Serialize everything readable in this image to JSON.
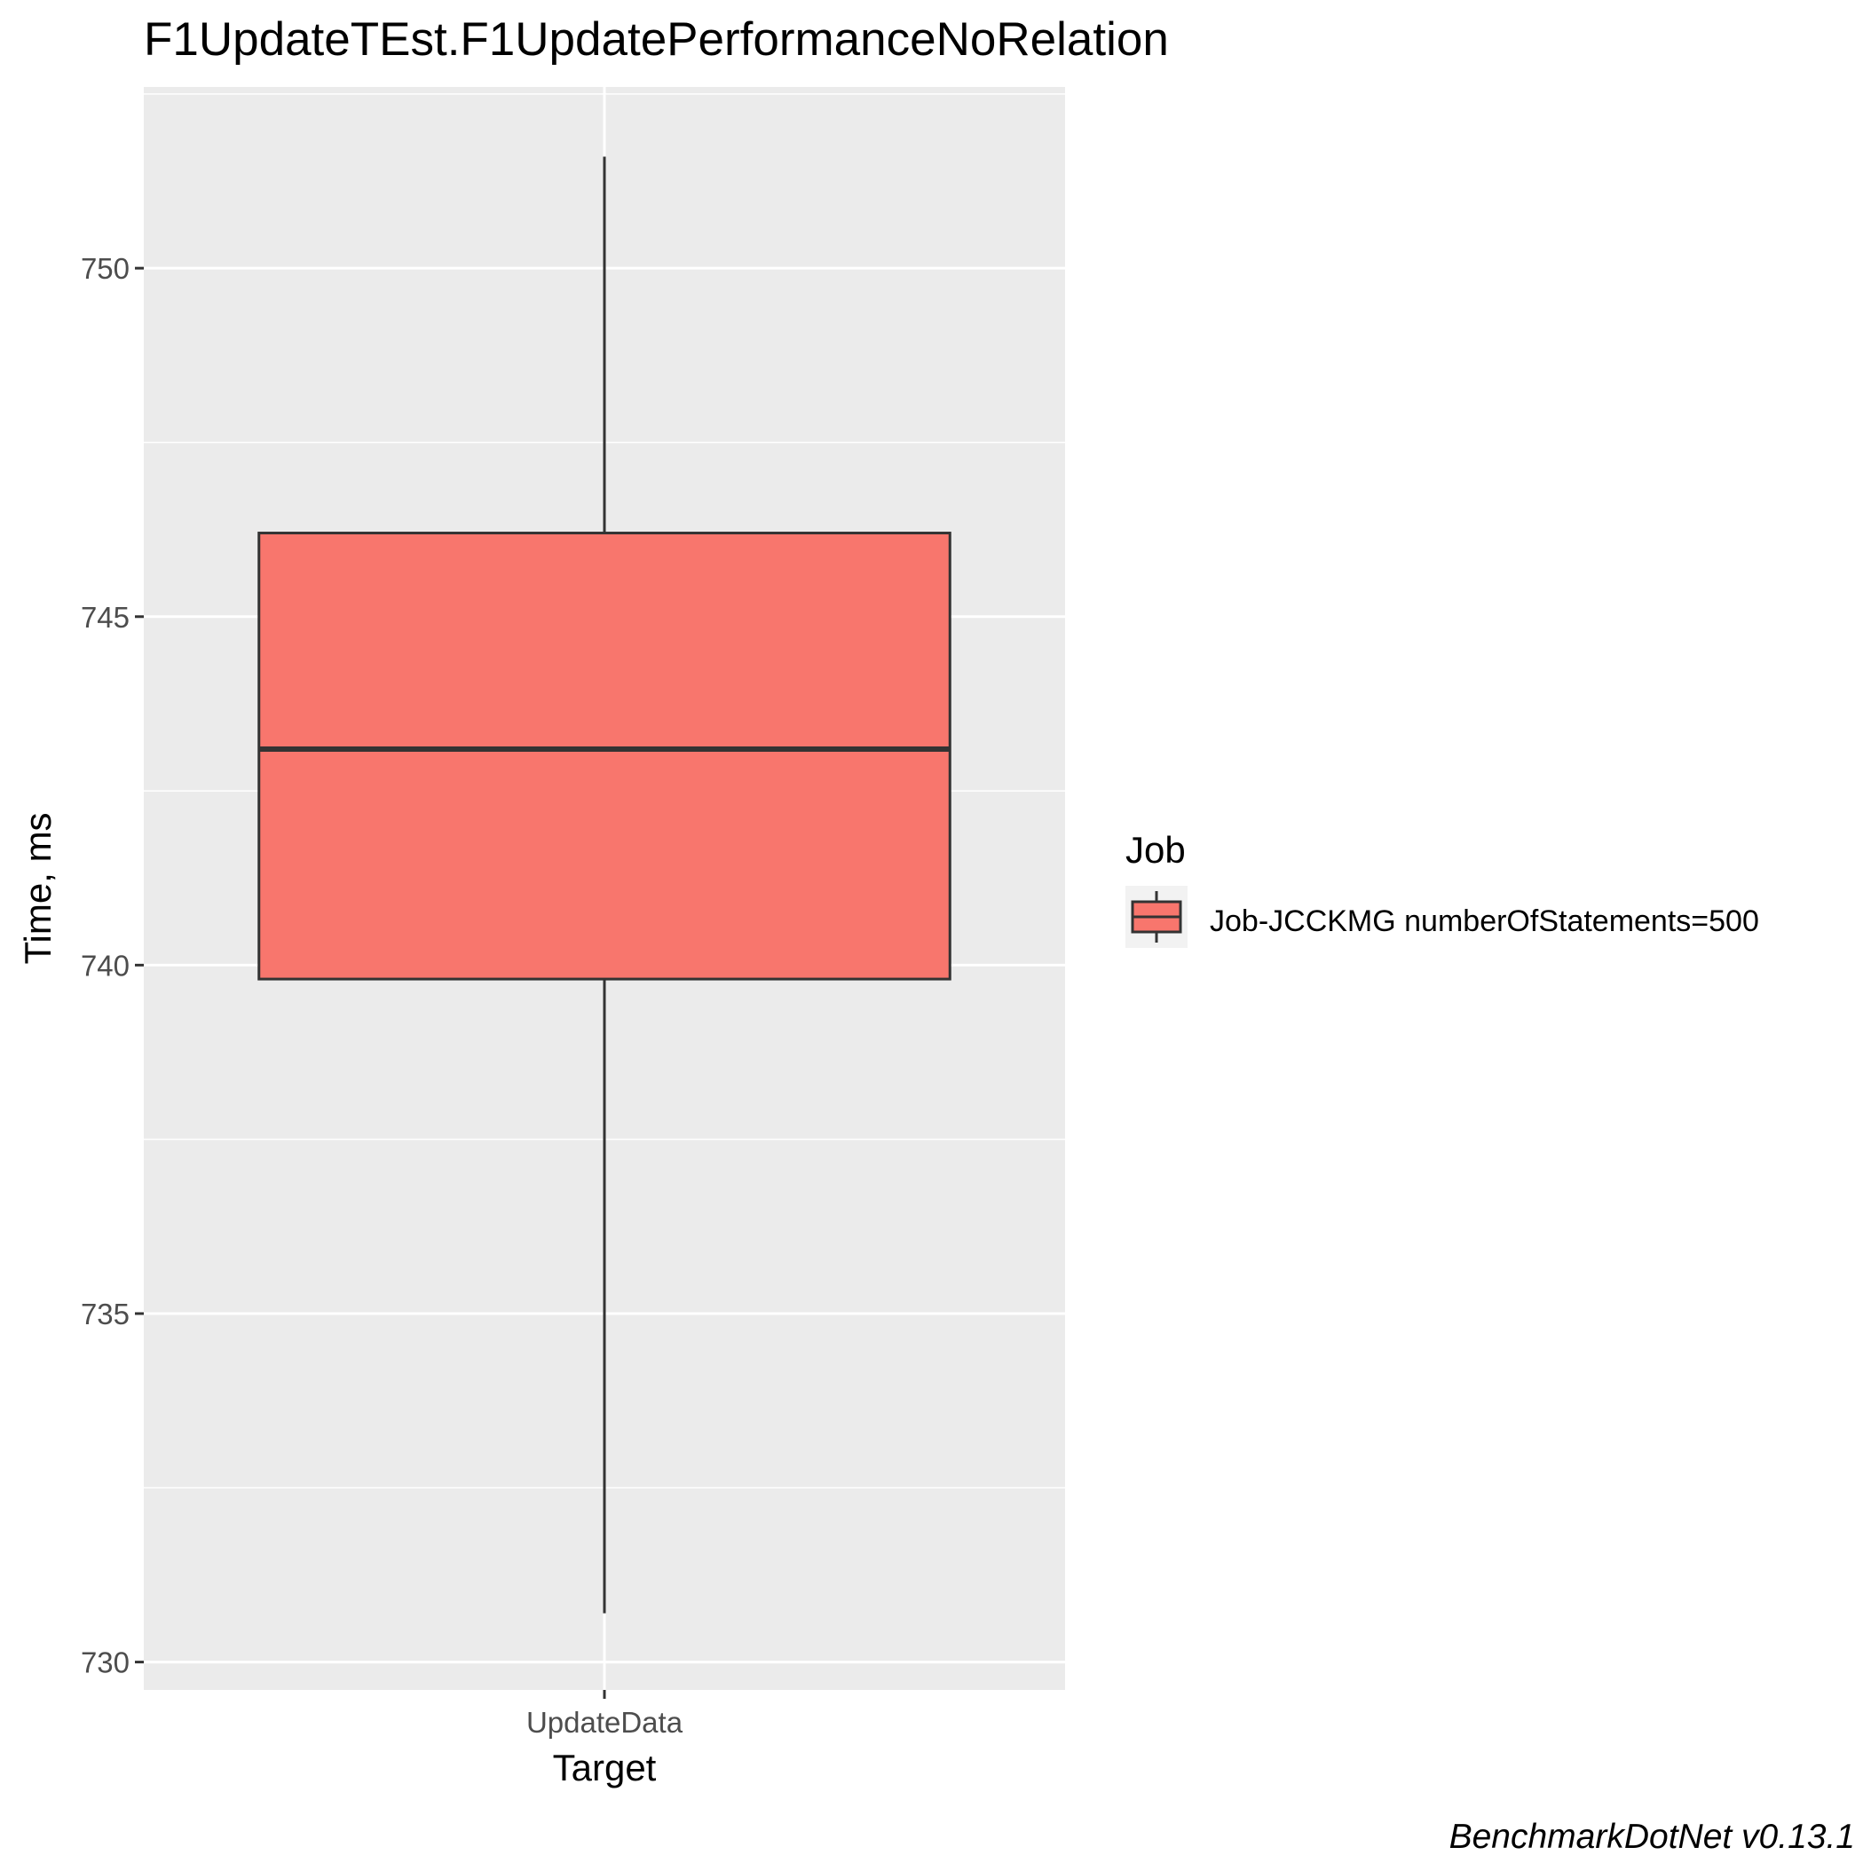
{
  "chart_data": {
    "type": "box",
    "title": "F1UpdateTEst.F1UpdatePerformanceNoRelation",
    "xlabel": "Target",
    "ylabel": "Time, ms",
    "categories": [
      "UpdateData"
    ],
    "ylim": [
      729.6,
      752.6
    ],
    "yticks": [
      730,
      735,
      740,
      745,
      750
    ],
    "ytick_labels": [
      "730",
      "735",
      "740",
      "745",
      "750"
    ],
    "grid": true,
    "legend": {
      "title": "Job",
      "position": "right",
      "entries": [
        "Job-JCCKMG numberOfStatements=500"
      ]
    },
    "series": [
      {
        "name": "Job-JCCKMG numberOfStatements=500",
        "color": "#F8766D",
        "boxes": [
          {
            "category": "UpdateData",
            "min": 730.7,
            "q1": 739.8,
            "median": 743.1,
            "q3": 746.2,
            "max": 751.6
          }
        ]
      }
    ],
    "caption": "BenchmarkDotNet v0.13.1"
  }
}
